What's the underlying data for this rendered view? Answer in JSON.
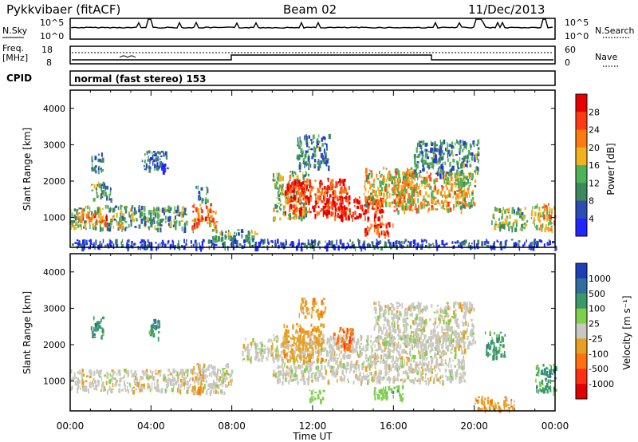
{
  "header": {
    "radar": "Pykkvibaer (fitACF)",
    "beam": "Beam 02",
    "date": "11/Dec/2013"
  },
  "panels": {
    "nsky_label": "N.Sky",
    "nsky_ticks": [
      "10^5",
      "10^0"
    ],
    "nsky_right_ticks": [
      "10^5",
      "10^0"
    ],
    "nsearch_label": "N.Search",
    "freq_label_1": "Freq.",
    "freq_label_2": "[MHz]",
    "freq_ticks": [
      "18",
      "8"
    ],
    "nave_ticks": [
      "60",
      "0"
    ],
    "nave_label": "Nave",
    "cpid_label": "CPID",
    "cpid_text": "normal (fast stereo) 153"
  },
  "chart_data": [
    {
      "type": "heatmap",
      "name": "power",
      "ylabel": "Slant Range [km]",
      "xlabel": "Time UT",
      "xticks": [
        "00:00",
        "04:00",
        "08:00",
        "12:00",
        "16:00",
        "20:00",
        "00:00"
      ],
      "yticks": [
        1000,
        2000,
        3000,
        4000
      ],
      "xlim_hours": [
        0,
        24
      ],
      "ylim_km": [
        180,
        4500
      ],
      "colorbar_label": "Power [dB]",
      "colorbar_ticks": [
        4,
        8,
        12,
        16,
        20,
        24,
        28
      ],
      "colorbar_colors": [
        "#1f26ff",
        "#2b4db3",
        "#3c8a5c",
        "#4db357",
        "#f2b21f",
        "#ff7a10",
        "#ff3a10",
        "#e80000"
      ],
      "patches": [
        {
          "t0": 0.0,
          "t1": 2.6,
          "r0": 720,
          "r1": 1350,
          "level": 0.45
        },
        {
          "t0": 0.3,
          "t1": 1.8,
          "r0": 850,
          "r1": 1150,
          "level": 0.75
        },
        {
          "t0": 1.0,
          "t1": 2.0,
          "r0": 1500,
          "r1": 2000,
          "level": 0.35
        },
        {
          "t0": 1.0,
          "t1": 1.6,
          "r0": 2300,
          "r1": 2800,
          "level": 0.25
        },
        {
          "t0": 3.5,
          "t1": 4.8,
          "r0": 2300,
          "r1": 2850,
          "level": 0.2
        },
        {
          "t0": 2.5,
          "t1": 5.8,
          "r0": 700,
          "r1": 1350,
          "level": 0.35
        },
        {
          "t0": 6.0,
          "t1": 7.2,
          "r0": 700,
          "r1": 1400,
          "level": 0.7
        },
        {
          "t0": 6.2,
          "t1": 6.8,
          "r0": 1500,
          "r1": 1900,
          "level": 0.3
        },
        {
          "t0": 7.0,
          "t1": 9.2,
          "r0": 380,
          "r1": 700,
          "level": 0.35
        },
        {
          "t0": 10.0,
          "t1": 11.8,
          "r0": 1000,
          "r1": 2300,
          "level": 0.45
        },
        {
          "t0": 10.6,
          "t1": 13.8,
          "r0": 1100,
          "r1": 2100,
          "level": 0.85
        },
        {
          "t0": 11.2,
          "t1": 12.8,
          "r0": 2400,
          "r1": 3300,
          "level": 0.3
        },
        {
          "t0": 12.5,
          "t1": 15.5,
          "r0": 1000,
          "r1": 1600,
          "level": 0.9
        },
        {
          "t0": 14.5,
          "t1": 16.0,
          "r0": 550,
          "r1": 900,
          "level": 0.85
        },
        {
          "t0": 14.5,
          "t1": 17.0,
          "r0": 1400,
          "r1": 2400,
          "level": 0.55
        },
        {
          "t0": 16.0,
          "t1": 19.5,
          "r0": 1200,
          "r1": 2300,
          "level": 0.6
        },
        {
          "t0": 17.0,
          "t1": 20.2,
          "r0": 2200,
          "r1": 3150,
          "level": 0.3
        },
        {
          "t0": 19.0,
          "t1": 20.0,
          "r0": 1300,
          "r1": 2200,
          "level": 0.5
        },
        {
          "t0": 20.8,
          "t1": 22.6,
          "r0": 700,
          "r1": 1300,
          "level": 0.4
        },
        {
          "t0": 22.8,
          "t1": 24.0,
          "r0": 700,
          "r1": 1400,
          "level": 0.6
        },
        {
          "t0": 0.0,
          "t1": 24.0,
          "r0": 200,
          "r1": 420,
          "level": 0.15
        }
      ]
    },
    {
      "type": "heatmap",
      "name": "velocity",
      "ylabel": "Slant Range [km]",
      "xlabel": "Time UT",
      "xticks": [
        "00:00",
        "04:00",
        "08:00",
        "12:00",
        "16:00",
        "20:00",
        "00:00"
      ],
      "yticks": [
        1000,
        2000,
        3000,
        4000
      ],
      "xlim_hours": [
        0,
        24
      ],
      "ylim_km": [
        180,
        4500
      ],
      "colorbar_label": "Velocity [m s⁻¹]",
      "colorbar_ticks": [
        1000,
        500,
        100,
        25,
        -25,
        -100,
        -500,
        -1000
      ],
      "colorbar_colors": [
        "#1a3fb8",
        "#2f6e9e",
        "#3a9a6a",
        "#7fd04a",
        "#c8c8c0",
        "#e8a020",
        "#ff7010",
        "#ff3010",
        "#e00000"
      ],
      "patches": [
        {
          "t0": 0.0,
          "t1": 6.0,
          "r0": 750,
          "r1": 1350,
          "cat": 4
        },
        {
          "t0": 6.0,
          "t1": 8.0,
          "r0": 700,
          "r1": 1500,
          "cat": 4
        },
        {
          "t0": 6.0,
          "t1": 6.6,
          "r0": 700,
          "r1": 1500,
          "cat": 5
        },
        {
          "t0": 1.0,
          "t1": 1.6,
          "r0": 2200,
          "r1": 2800,
          "cat": 2
        },
        {
          "t0": 3.8,
          "t1": 4.4,
          "r0": 2200,
          "r1": 2750,
          "cat": 2
        },
        {
          "t0": 8.5,
          "t1": 10.0,
          "r0": 1600,
          "r1": 2200,
          "cat": 4
        },
        {
          "t0": 10.0,
          "t1": 19.5,
          "r0": 1000,
          "r1": 2300,
          "cat": 4
        },
        {
          "t0": 15.0,
          "t1": 20.0,
          "r0": 2000,
          "r1": 3200,
          "cat": 4
        },
        {
          "t0": 10.5,
          "t1": 12.5,
          "r0": 1600,
          "r1": 2600,
          "cat": 5
        },
        {
          "t0": 11.3,
          "t1": 12.6,
          "r0": 2800,
          "r1": 3300,
          "cat": 5
        },
        {
          "t0": 13.0,
          "t1": 14.0,
          "r0": 1900,
          "r1": 2500,
          "cat": 6
        },
        {
          "t0": 15.0,
          "t1": 16.5,
          "r0": 500,
          "r1": 900,
          "cat": 3
        },
        {
          "t0": 11.8,
          "t1": 12.6,
          "r0": 500,
          "r1": 800,
          "cat": 3
        },
        {
          "t0": 20.5,
          "t1": 21.5,
          "r0": 1700,
          "r1": 2400,
          "cat": 2
        },
        {
          "t0": 20.0,
          "t1": 22.0,
          "r0": 200,
          "r1": 600,
          "cat": 5
        },
        {
          "t0": 23.0,
          "t1": 24.0,
          "r0": 700,
          "r1": 1500,
          "cat": 2
        }
      ]
    }
  ]
}
